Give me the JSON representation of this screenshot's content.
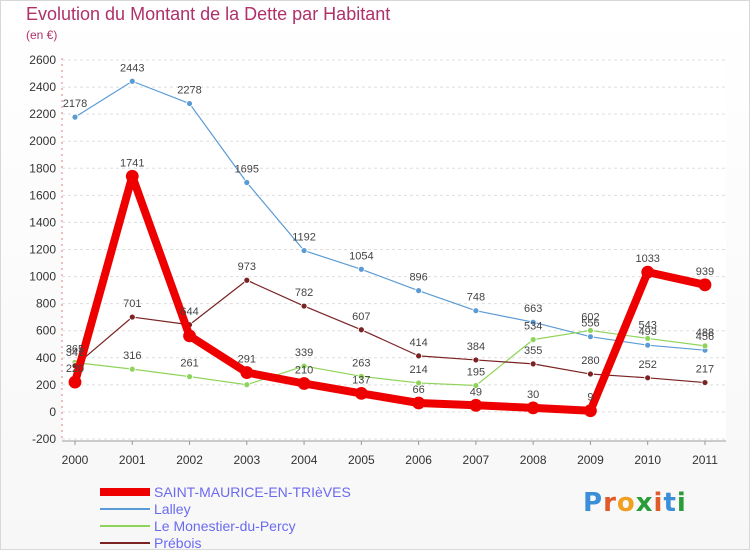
{
  "title": "Evolution du Montant de la Dette par Habitant",
  "subtitle": "(en €)",
  "logo": {
    "text": "Proxiti",
    "letter_colors": [
      "#3a8fd8",
      "#e05a2a",
      "#f0a020",
      "#2a9d3a",
      "#e05a2a",
      "#3a8fd8",
      "#2a9d3a"
    ]
  },
  "chart_data": {
    "type": "line",
    "title": "Evolution du Montant de la Dette par Habitant",
    "subtitle": "(en €)",
    "xlabel": "",
    "ylabel": "",
    "x": [
      "2000",
      "2001",
      "2002",
      "2003",
      "2004",
      "2005",
      "2006",
      "2007",
      "2008",
      "2009",
      "2010",
      "2011"
    ],
    "ylim": [
      -200,
      2600
    ],
    "yticks": [
      -200,
      0,
      200,
      400,
      600,
      800,
      1000,
      1200,
      1400,
      1600,
      1800,
      2000,
      2200,
      2400,
      2600
    ],
    "grid": "horizontal dashed",
    "legend_position": "bottom-left",
    "series": [
      {
        "name": "SAINT-MAURICE-EN-TRIèVES",
        "color": "#ee0000",
        "emphasis": true,
        "values": [
          220,
          1741,
          562,
          291,
          210,
          137,
          66,
          49,
          30,
          9,
          1033,
          939
        ],
        "labels": [
          "220",
          "1741",
          "",
          "291",
          "210",
          "137",
          "66",
          "49",
          "30",
          "9",
          "1033",
          "939"
        ]
      },
      {
        "name": "Lalley",
        "color": "#5b9bd5",
        "values": [
          2178,
          2443,
          2278,
          1695,
          1192,
          1054,
          896,
          748,
          663,
          556,
          493,
          456
        ],
        "labels": [
          "2178",
          "2443",
          "2278",
          "1695",
          "1192",
          "1054",
          "896",
          "748",
          "663",
          "556",
          "493",
          "456"
        ]
      },
      {
        "name": "Le Monestier-du-Percy",
        "color": "#8fd45a",
        "values": [
          365,
          316,
          261,
          201,
          339,
          263,
          214,
          195,
          534,
          602,
          543,
          488
        ],
        "labels": [
          "365",
          "316",
          "261",
          "",
          "339",
          "263",
          "214",
          "195",
          "534",
          "602",
          "543",
          "488"
        ]
      },
      {
        "name": "Prébois",
        "color": "#7b2222",
        "values": [
          341,
          701,
          644,
          973,
          782,
          607,
          414,
          384,
          355,
          280,
          252,
          217
        ],
        "labels": [
          "341",
          "701",
          "644",
          "973",
          "782",
          "607",
          "414",
          "384",
          "355",
          "280",
          "252",
          "217"
        ]
      }
    ]
  }
}
